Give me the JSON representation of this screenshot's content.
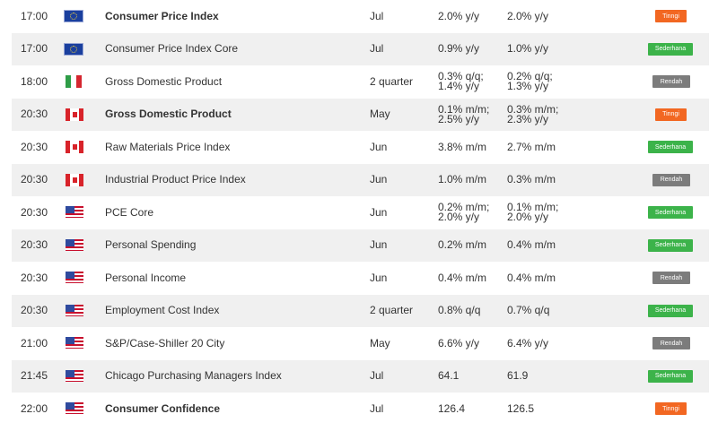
{
  "colors": {
    "row_shade": "#f0f0f0",
    "tinggi": "#f26722",
    "sedang": "#3cb34a",
    "rendah": "#7c7c7c"
  },
  "rows": [
    {
      "time": "17:00",
      "flag": "eu-flag-icon",
      "event": "Consumer Price Index",
      "bold": true,
      "period": "Jul",
      "actual": [
        "2.0% y/y"
      ],
      "forecast": [
        "2.0% y/y"
      ],
      "impact": "Tinngi",
      "impact_class": "tinggi"
    },
    {
      "time": "17:00",
      "flag": "eu-flag-icon",
      "event": "Consumer Price Index Core",
      "bold": false,
      "period": "Jul",
      "actual": [
        "0.9% y/y"
      ],
      "forecast": [
        "1.0% y/y"
      ],
      "impact": "Sederhana",
      "impact_class": "sedang"
    },
    {
      "time": "18:00",
      "flag": "italy-flag-icon",
      "event": "Gross Domestic Product",
      "bold": false,
      "period": "2 quarter",
      "actual": [
        "0.3% q/q;",
        "1.4% y/y"
      ],
      "forecast": [
        "0.2% q/q;",
        "1.3% y/y"
      ],
      "impact": "Rendah",
      "impact_class": "rendah"
    },
    {
      "time": "20:30",
      "flag": "canada-flag-icon",
      "event": "Gross Domestic Product",
      "bold": true,
      "period": "May",
      "actual": [
        "0.1% m/m;",
        "2.5% y/y"
      ],
      "forecast": [
        "0.3% m/m;",
        "2.3% y/y"
      ],
      "impact": "Tinngi",
      "impact_class": "tinggi"
    },
    {
      "time": "20:30",
      "flag": "canada-flag-icon",
      "event": "Raw Materials Price Index",
      "bold": false,
      "period": "Jun",
      "actual": [
        "3.8% m/m"
      ],
      "forecast": [
        "2.7% m/m"
      ],
      "impact": "Sederhana",
      "impact_class": "sedang"
    },
    {
      "time": "20:30",
      "flag": "canada-flag-icon",
      "event": "Industrial Product Price Index",
      "bold": false,
      "period": "Jun",
      "actual": [
        "1.0% m/m"
      ],
      "forecast": [
        "0.3% m/m"
      ],
      "impact": "Rendah",
      "impact_class": "rendah"
    },
    {
      "time": "20:30",
      "flag": "usa-flag-icon",
      "event": "PCE Core",
      "bold": false,
      "period": "Jun",
      "actual": [
        "0.2% m/m;",
        "2.0% y/y"
      ],
      "forecast": [
        "0.1% m/m;",
        "2.0% y/y"
      ],
      "impact": "Sederhana",
      "impact_class": "sedang"
    },
    {
      "time": "20:30",
      "flag": "usa-flag-icon",
      "event": "Personal Spending",
      "bold": false,
      "period": "Jun",
      "actual": [
        "0.2% m/m"
      ],
      "forecast": [
        "0.4% m/m"
      ],
      "impact": "Sederhana",
      "impact_class": "sedang"
    },
    {
      "time": "20:30",
      "flag": "usa-flag-icon",
      "event": "Personal Income",
      "bold": false,
      "period": "Jun",
      "actual": [
        "0.4% m/m"
      ],
      "forecast": [
        "0.4% m/m"
      ],
      "impact": "Rendah",
      "impact_class": "rendah"
    },
    {
      "time": "20:30",
      "flag": "usa-flag-icon",
      "event": "Employment Cost Index",
      "bold": false,
      "period": "2 quarter",
      "actual": [
        "0.8% q/q"
      ],
      "forecast": [
        "0.7% q/q"
      ],
      "impact": "Sederhana",
      "impact_class": "sedang"
    },
    {
      "time": "21:00",
      "flag": "usa-flag-icon",
      "event": "S&P/Case-Shiller 20 City",
      "bold": false,
      "period": "May",
      "actual": [
        "6.6% y/y"
      ],
      "forecast": [
        "6.4% y/y"
      ],
      "impact": "Rendah",
      "impact_class": "rendah"
    },
    {
      "time": "21:45",
      "flag": "usa-flag-icon",
      "event": "Chicago Purchasing Managers Index",
      "bold": false,
      "period": "Jul",
      "actual": [
        "64.1"
      ],
      "forecast": [
        "61.9"
      ],
      "impact": "Sederhana",
      "impact_class": "sedang"
    },
    {
      "time": "22:00",
      "flag": "usa-flag-icon",
      "event": "Consumer Confidence",
      "bold": true,
      "period": "Jul",
      "actual": [
        "126.4"
      ],
      "forecast": [
        "126.5"
      ],
      "impact": "Tinngi",
      "impact_class": "tinggi"
    }
  ]
}
